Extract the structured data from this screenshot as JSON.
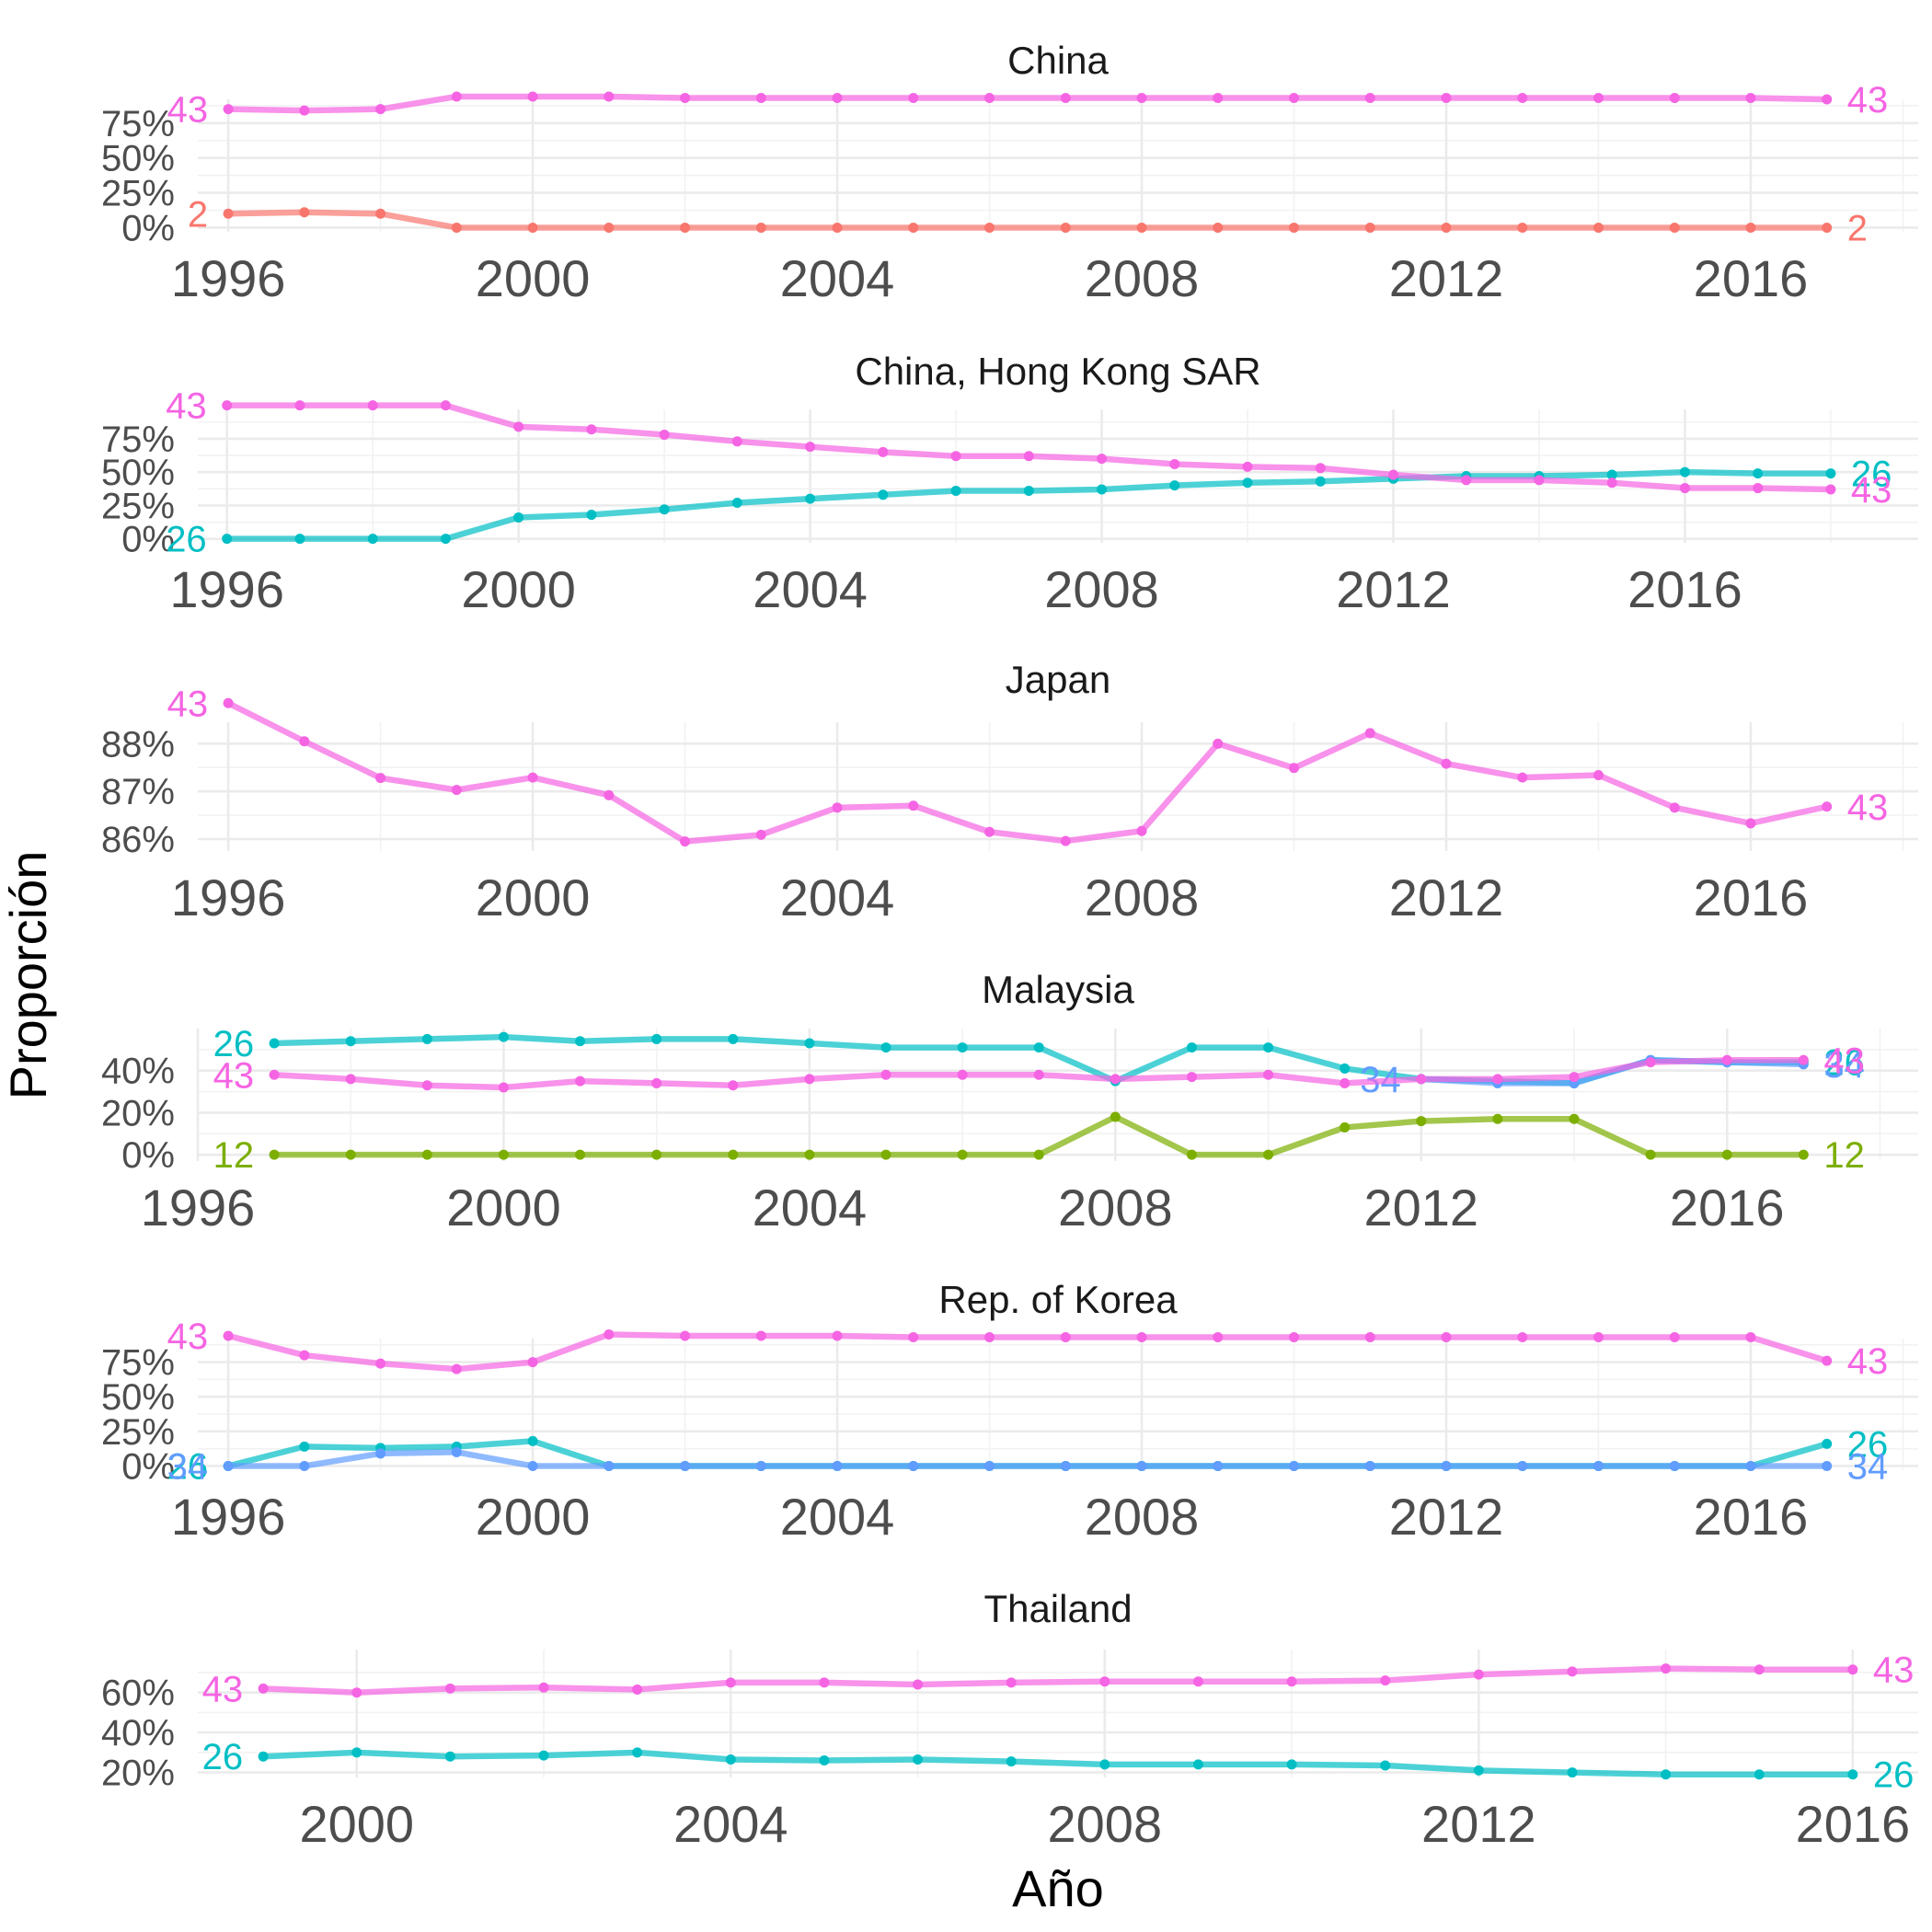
{
  "xlabel": "Año",
  "ylabel": "Proporción",
  "colors": {
    "2": "#f8766d",
    "12": "#7cae00",
    "26": "#00bfc4",
    "34": "#619cff",
    "43": "#f564e3"
  },
  "chart_data": [
    {
      "type": "line",
      "title": "China",
      "xlim": [
        1995.6,
        2018.2
      ],
      "xticks": [
        "1996",
        "2000",
        "2004",
        "2008",
        "2012",
        "2016"
      ],
      "ylim": [
        -0.03,
        0.92
      ],
      "yticks": [
        0,
        0.25,
        0.5,
        0.75
      ],
      "ytick_labels": [
        "0%",
        "25%",
        "50%",
        "75%"
      ],
      "series": [
        {
          "name": "2",
          "x": [
            1996,
            1997,
            1998,
            1999,
            2000,
            2001,
            2002,
            2003,
            2004,
            2005,
            2006,
            2007,
            2008,
            2009,
            2010,
            2011,
            2012,
            2013,
            2014,
            2015,
            2016,
            2017
          ],
          "y": [
            0.1,
            0.11,
            0.1,
            0.0,
            0.0,
            0.0,
            0.0,
            0.0,
            0.0,
            0.0,
            0.0,
            0.0,
            0.0,
            0.0,
            0.0,
            0.0,
            0.0,
            0.0,
            0.0,
            0.0,
            0.0,
            0.0
          ]
        },
        {
          "name": "43",
          "x": [
            1996,
            1997,
            1998,
            1999,
            2000,
            2001,
            2002,
            2003,
            2004,
            2005,
            2006,
            2007,
            2008,
            2009,
            2010,
            2011,
            2012,
            2013,
            2014,
            2015,
            2016,
            2017
          ],
          "y": [
            0.85,
            0.84,
            0.85,
            0.94,
            0.94,
            0.94,
            0.93,
            0.93,
            0.93,
            0.93,
            0.93,
            0.93,
            0.93,
            0.93,
            0.93,
            0.93,
            0.93,
            0.93,
            0.93,
            0.93,
            0.93,
            0.92
          ]
        }
      ]
    },
    {
      "type": "line",
      "title": "China, Hong Kong SAR",
      "xlim": [
        1995.6,
        2019.2
      ],
      "xticks": [
        "1996",
        "2000",
        "2004",
        "2008",
        "2012",
        "2016"
      ],
      "ylim": [
        -0.03,
        0.97
      ],
      "yticks": [
        0,
        0.25,
        0.5,
        0.75
      ],
      "ytick_labels": [
        "0%",
        "25%",
        "50%",
        "75%"
      ],
      "series": [
        {
          "name": "26",
          "x": [
            1996,
            1997,
            1998,
            1999,
            2000,
            2001,
            2002,
            2003,
            2004,
            2005,
            2006,
            2007,
            2008,
            2009,
            2010,
            2011,
            2012,
            2013,
            2014,
            2015,
            2016,
            2017,
            2018
          ],
          "y": [
            0.0,
            0.0,
            0.0,
            0.0,
            0.16,
            0.18,
            0.22,
            0.27,
            0.3,
            0.33,
            0.36,
            0.36,
            0.37,
            0.4,
            0.42,
            0.43,
            0.45,
            0.47,
            0.47,
            0.48,
            0.5,
            0.49,
            0.49
          ]
        },
        {
          "name": "43",
          "x": [
            1996,
            1997,
            1998,
            1999,
            2000,
            2001,
            2002,
            2003,
            2004,
            2005,
            2006,
            2007,
            2008,
            2009,
            2010,
            2011,
            2012,
            2013,
            2014,
            2015,
            2016,
            2017,
            2018
          ],
          "y": [
            1.0,
            1.0,
            1.0,
            1.0,
            0.84,
            0.82,
            0.78,
            0.73,
            0.69,
            0.65,
            0.62,
            0.62,
            0.6,
            0.56,
            0.54,
            0.53,
            0.48,
            0.44,
            0.44,
            0.42,
            0.38,
            0.38,
            0.37
          ]
        }
      ]
    },
    {
      "type": "line",
      "title": "Japan",
      "xlim": [
        1995.6,
        2018.2
      ],
      "xticks": [
        "1996",
        "2000",
        "2004",
        "2008",
        "2012",
        "2016"
      ],
      "ylim": [
        0.8575,
        0.8845
      ],
      "yticks": [
        0.86,
        0.87,
        0.88
      ],
      "ytick_labels": [
        "86%",
        "87%",
        "88%"
      ],
      "series": [
        {
          "name": "43",
          "x": [
            1996,
            1997,
            1998,
            1999,
            2000,
            2001,
            2002,
            2003,
            2004,
            2005,
            2006,
            2007,
            2008,
            2009,
            2010,
            2011,
            2012,
            2013,
            2014,
            2015,
            2016,
            2017
          ],
          "y": [
            0.8885,
            0.8805,
            0.8728,
            0.8703,
            0.8729,
            0.8692,
            0.8595,
            0.8609,
            0.8666,
            0.867,
            0.8615,
            0.8596,
            0.8617,
            0.88,
            0.8749,
            0.8822,
            0.8758,
            0.8729,
            0.8734,
            0.8666,
            0.8633,
            0.8668
          ]
        }
      ]
    },
    {
      "type": "line",
      "title": "Malaysia",
      "xlim": [
        1996.0,
        2018.5
      ],
      "xticks": [
        "1996",
        "2000",
        "2004",
        "2008",
        "2012",
        "2016"
      ],
      "ylim": [
        -0.03,
        0.6
      ],
      "yticks": [
        0,
        0.2,
        0.4
      ],
      "ytick_labels": [
        "0%",
        "20%",
        "40%"
      ],
      "series": [
        {
          "name": "12",
          "x": [
            1997,
            1998,
            1999,
            2000,
            2001,
            2002,
            2003,
            2004,
            2005,
            2006,
            2007,
            2008,
            2009,
            2010,
            2011,
            2012,
            2013,
            2014,
            2015,
            2016,
            2017
          ],
          "y": [
            0.0,
            0.0,
            0.0,
            0.0,
            0.0,
            0.0,
            0.0,
            0.0,
            0.0,
            0.0,
            0.0,
            0.18,
            0.0,
            0.0,
            0.13,
            0.16,
            0.17,
            0.17,
            0.0,
            0.0,
            0.0
          ]
        },
        {
          "name": "26",
          "x": [
            1997,
            1998,
            1999,
            2000,
            2001,
            2002,
            2003,
            2004,
            2005,
            2006,
            2007,
            2008,
            2009,
            2010,
            2011,
            2012,
            2013,
            2014,
            2015,
            2016,
            2017
          ],
          "y": [
            0.53,
            0.54,
            0.55,
            0.56,
            0.54,
            0.55,
            0.55,
            0.53,
            0.51,
            0.51,
            0.51,
            0.35,
            0.51,
            0.51,
            0.41,
            0.36,
            0.35,
            0.34,
            0.45,
            0.44,
            0.44
          ]
        },
        {
          "name": "34",
          "x": [
            2012,
            2013,
            2014,
            2015,
            2016,
            2017
          ],
          "y": [
            0.36,
            0.34,
            0.34,
            0.45,
            0.44,
            0.43
          ]
        },
        {
          "name": "43",
          "x": [
            1997,
            1998,
            1999,
            2000,
            2001,
            2002,
            2003,
            2004,
            2005,
            2006,
            2007,
            2008,
            2009,
            2010,
            2011,
            2012,
            2013,
            2014,
            2015,
            2016,
            2017
          ],
          "y": [
            0.38,
            0.36,
            0.33,
            0.32,
            0.35,
            0.34,
            0.33,
            0.36,
            0.38,
            0.38,
            0.38,
            0.36,
            0.37,
            0.38,
            0.34,
            0.36,
            0.36,
            0.37,
            0.44,
            0.45,
            0.45
          ]
        }
      ]
    },
    {
      "type": "line",
      "title": "Rep. of Korea",
      "xlim": [
        1995.6,
        2018.2
      ],
      "xticks": [
        "1996",
        "2000",
        "2004",
        "2008",
        "2012",
        "2016"
      ],
      "ylim": [
        -0.03,
        0.92
      ],
      "yticks": [
        0,
        0.25,
        0.5,
        0.75
      ],
      "ytick_labels": [
        "0%",
        "25%",
        "50%",
        "75%"
      ],
      "series": [
        {
          "name": "26",
          "x": [
            1996,
            1997,
            1998,
            1999,
            2000,
            2001,
            2002,
            2003,
            2004,
            2005,
            2006,
            2007,
            2008,
            2009,
            2010,
            2011,
            2012,
            2013,
            2014,
            2015,
            2016,
            2017
          ],
          "y": [
            0.0,
            0.14,
            0.13,
            0.14,
            0.18,
            0.0,
            0.0,
            0.0,
            0.0,
            0.0,
            0.0,
            0.0,
            0.0,
            0.0,
            0.0,
            0.0,
            0.0,
            0.0,
            0.0,
            0.0,
            0.0,
            0.16
          ]
        },
        {
          "name": "34",
          "x": [
            1996,
            1997,
            1998,
            1999,
            2000,
            2001,
            2002,
            2003,
            2004,
            2005,
            2006,
            2007,
            2008,
            2009,
            2010,
            2011,
            2012,
            2013,
            2014,
            2015,
            2016,
            2017
          ],
          "y": [
            0.0,
            0.0,
            0.09,
            0.1,
            0.0,
            0.0,
            0.0,
            0.0,
            0.0,
            0.0,
            0.0,
            0.0,
            0.0,
            0.0,
            0.0,
            0.0,
            0.0,
            0.0,
            0.0,
            0.0,
            0.0,
            0.0
          ]
        },
        {
          "name": "43",
          "x": [
            1996,
            1997,
            1998,
            1999,
            2000,
            2001,
            2002,
            2003,
            2004,
            2005,
            2006,
            2007,
            2008,
            2009,
            2010,
            2011,
            2012,
            2013,
            2014,
            2015,
            2016,
            2017
          ],
          "y": [
            0.94,
            0.8,
            0.74,
            0.7,
            0.75,
            0.95,
            0.94,
            0.94,
            0.94,
            0.93,
            0.93,
            0.93,
            0.93,
            0.93,
            0.93,
            0.93,
            0.93,
            0.93,
            0.93,
            0.93,
            0.93,
            0.76
          ]
        }
      ]
    },
    {
      "type": "line",
      "title": "Thailand",
      "xlim": [
        1998.3,
        2016.7
      ],
      "xticks": [
        "2000",
        "2004",
        "2008",
        "2012",
        "2016"
      ],
      "ylim": [
        0.175,
        0.815
      ],
      "yticks": [
        0.2,
        0.4,
        0.6
      ],
      "ytick_labels": [
        "20%",
        "40%",
        "60%"
      ],
      "series": [
        {
          "name": "26",
          "x": [
            1999,
            2000,
            2001,
            2002,
            2003,
            2004,
            2005,
            2006,
            2007,
            2008,
            2009,
            2010,
            2011,
            2012,
            2013,
            2014,
            2015,
            2016
          ],
          "y": [
            0.28,
            0.3,
            0.28,
            0.285,
            0.3,
            0.265,
            0.26,
            0.265,
            0.255,
            0.24,
            0.24,
            0.24,
            0.235,
            0.21,
            0.2,
            0.19,
            0.19,
            0.19
          ]
        },
        {
          "name": "43",
          "x": [
            1999,
            2000,
            2001,
            2002,
            2003,
            2004,
            2005,
            2006,
            2007,
            2008,
            2009,
            2010,
            2011,
            2012,
            2013,
            2014,
            2015,
            2016
          ],
          "y": [
            0.62,
            0.6,
            0.62,
            0.625,
            0.615,
            0.65,
            0.65,
            0.64,
            0.65,
            0.655,
            0.655,
            0.655,
            0.66,
            0.69,
            0.705,
            0.72,
            0.715,
            0.715
          ]
        }
      ]
    }
  ]
}
